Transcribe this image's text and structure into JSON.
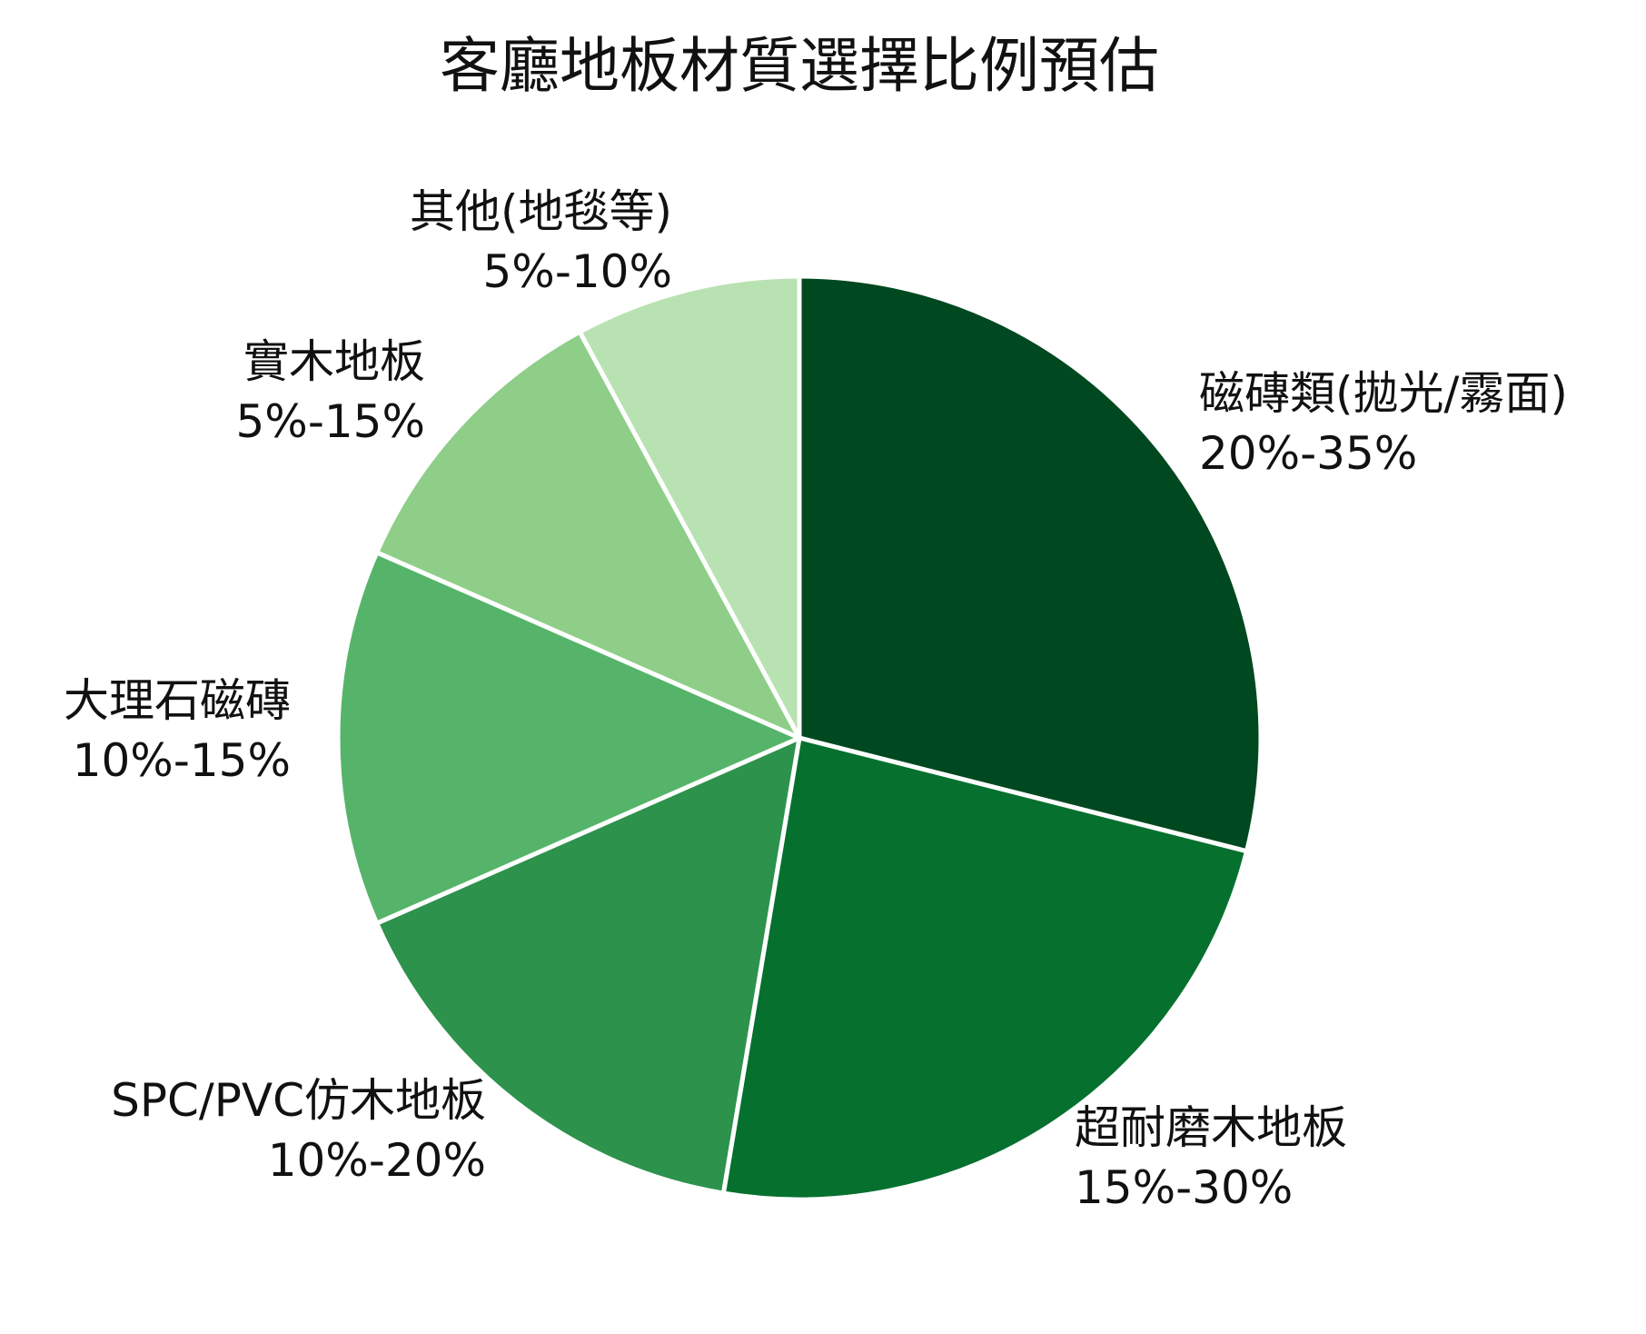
{
  "chart_data": {
    "type": "pie",
    "title": "客廳地板材質選擇比例預估",
    "start_angle_deg": 0,
    "direction": "clockwise",
    "slices": [
      {
        "name": "磁磚類(拋光/霧面)",
        "range": "20%-35%",
        "value": 27.5,
        "color": "#00481f"
      },
      {
        "name": "超耐磨木地板",
        "range": "15%-30%",
        "value": 22.5,
        "color": "#06702f"
      },
      {
        "name": "SPC/PVC仿木地板",
        "range": "10%-20%",
        "value": 15,
        "color": "#2c924c"
      },
      {
        "name": "大理石磁磚",
        "range": "10%-15%",
        "value": 12.5,
        "color": "#55b46a"
      },
      {
        "name": "實木地板",
        "range": "5%-15%",
        "value": 10,
        "color": "#8ece89"
      },
      {
        "name": "其他(地毯等)",
        "range": "5%-10%",
        "value": 7.5,
        "color": "#b9e2b2"
      }
    ]
  }
}
